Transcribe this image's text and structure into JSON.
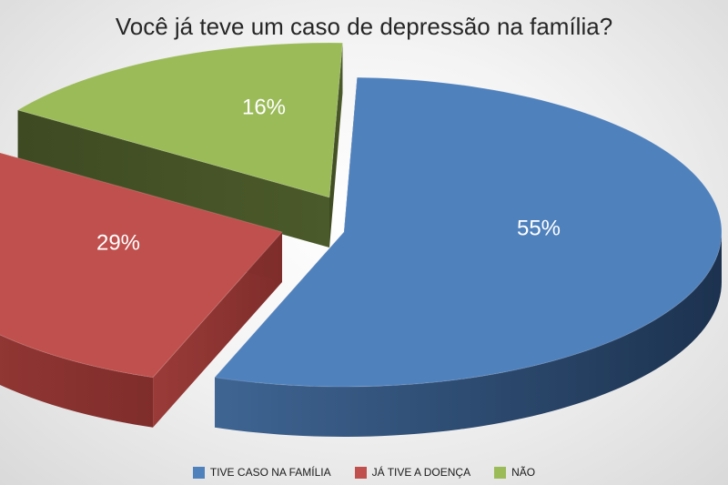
{
  "chart_data": {
    "type": "pie",
    "title": "Você já teve um caso de depressão na família?",
    "series": [
      {
        "name": "TIVE CASO NA FAMÍLIA",
        "value": 55,
        "label": "55%",
        "color": "#4f81bd"
      },
      {
        "name": "JÁ TIVE A DOENÇA",
        "value": 29,
        "label": "29%",
        "color": "#c0504d"
      },
      {
        "name": "NÃO",
        "value": 16,
        "label": "16%",
        "color": "#9bbb59"
      }
    ],
    "legend_position": "bottom",
    "style": "3d-exploded"
  }
}
